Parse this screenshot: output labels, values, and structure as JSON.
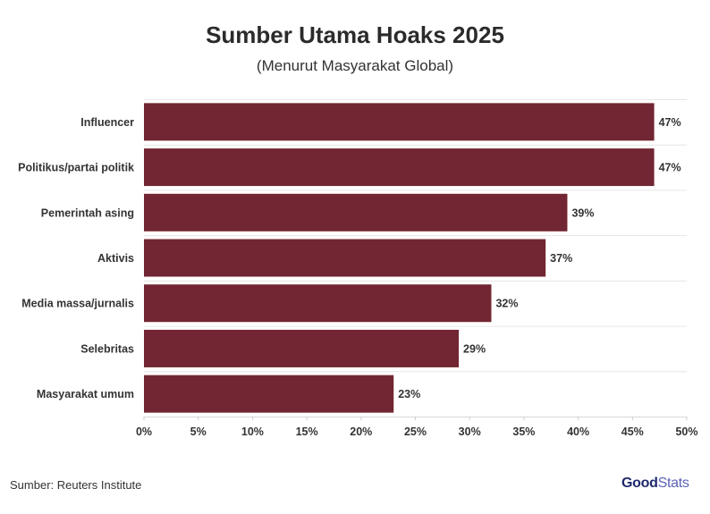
{
  "header": {
    "title": "Sumber Utama Hoaks 2025",
    "subtitle": "(Menurut Masyarakat Global)"
  },
  "footer": {
    "source": "Sumber: Reuters Institute",
    "brand_left": "Good",
    "brand_right": "Stats"
  },
  "colors": {
    "bar": "#722532",
    "grid": "#e6e6e6",
    "text": "#333333"
  },
  "chart_data": {
    "type": "bar",
    "orientation": "horizontal",
    "categories": [
      "Influencer",
      "Politikus/partai politik",
      "Pemerintah asing",
      "Aktivis",
      "Media massa/jurnalis",
      "Selebritas",
      "Masyarakat umum"
    ],
    "values": [
      47,
      47,
      39,
      37,
      32,
      29,
      23
    ],
    "value_labels": [
      "47%",
      "47%",
      "39%",
      "37%",
      "32%",
      "29%",
      "23%"
    ],
    "xlim": [
      0,
      50
    ],
    "xticks": [
      0,
      5,
      10,
      15,
      20,
      25,
      30,
      35,
      40,
      45,
      50
    ],
    "xtick_labels": [
      "0%",
      "5%",
      "10%",
      "15%",
      "20%",
      "25%",
      "30%",
      "35%",
      "40%",
      "45%",
      "50%"
    ],
    "grid": true
  }
}
